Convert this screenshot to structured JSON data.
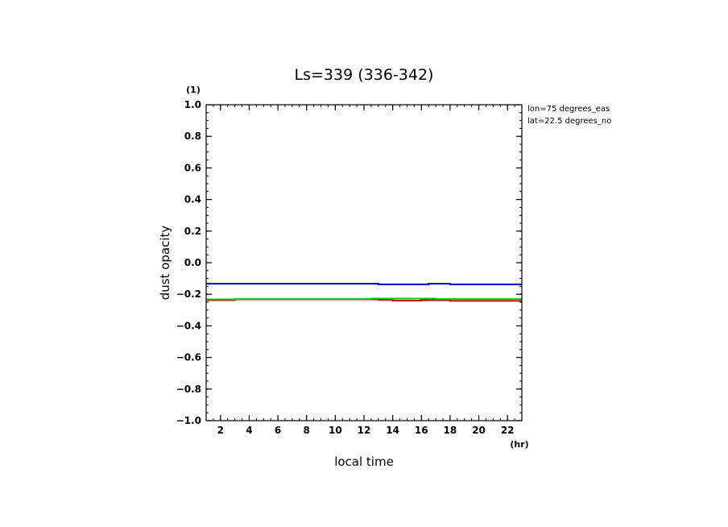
{
  "chart_data": {
    "type": "line",
    "title": "Ls=339 (336-342)",
    "xlabel": "local time",
    "ylabel": "dust opacity",
    "x_unit": "(hr)",
    "y_unit": "(1)",
    "xlim": [
      1,
      23
    ],
    "ylim": [
      -1.0,
      1.0
    ],
    "x_ticks": [
      2,
      4,
      6,
      8,
      10,
      12,
      14,
      16,
      18,
      20,
      22
    ],
    "y_ticks": [
      1.0,
      0.8,
      0.6,
      0.4,
      0.2,
      0.0,
      -0.2,
      -0.4,
      -0.6,
      -0.8,
      -1.0
    ],
    "y_tick_labels": [
      "1.0",
      "0.8",
      "0.6",
      "0.4",
      "0.2",
      "0.0",
      "−0.2",
      "−0.4",
      "−0.6",
      "−0.8",
      "−1.0"
    ],
    "grid": false,
    "annotations": [
      "lon=75 degrees_eas",
      "lat=22.5 degrees_no"
    ],
    "series": [
      {
        "color": "#0000cc",
        "x": [
          1,
          13,
          13,
          16.5,
          16.5,
          18,
          18,
          23
        ],
        "y": [
          -0.133,
          -0.133,
          -0.137,
          -0.137,
          -0.133,
          -0.133,
          -0.137,
          -0.137
        ]
      },
      {
        "color": "#cc0000",
        "x": [
          1,
          3,
          3,
          13,
          13,
          14,
          14,
          16,
          16,
          18,
          18,
          23
        ],
        "y": [
          -0.237,
          -0.237,
          -0.232,
          -0.232,
          -0.235,
          -0.235,
          -0.24,
          -0.24,
          -0.237,
          -0.237,
          -0.242,
          -0.242
        ]
      },
      {
        "color": "#00cc00",
        "x": [
          1,
          3,
          3,
          12.5,
          12.5,
          17,
          17,
          23
        ],
        "y": [
          -0.232,
          -0.232,
          -0.23,
          -0.23,
          -0.227,
          -0.227,
          -0.23,
          -0.23
        ]
      }
    ]
  }
}
